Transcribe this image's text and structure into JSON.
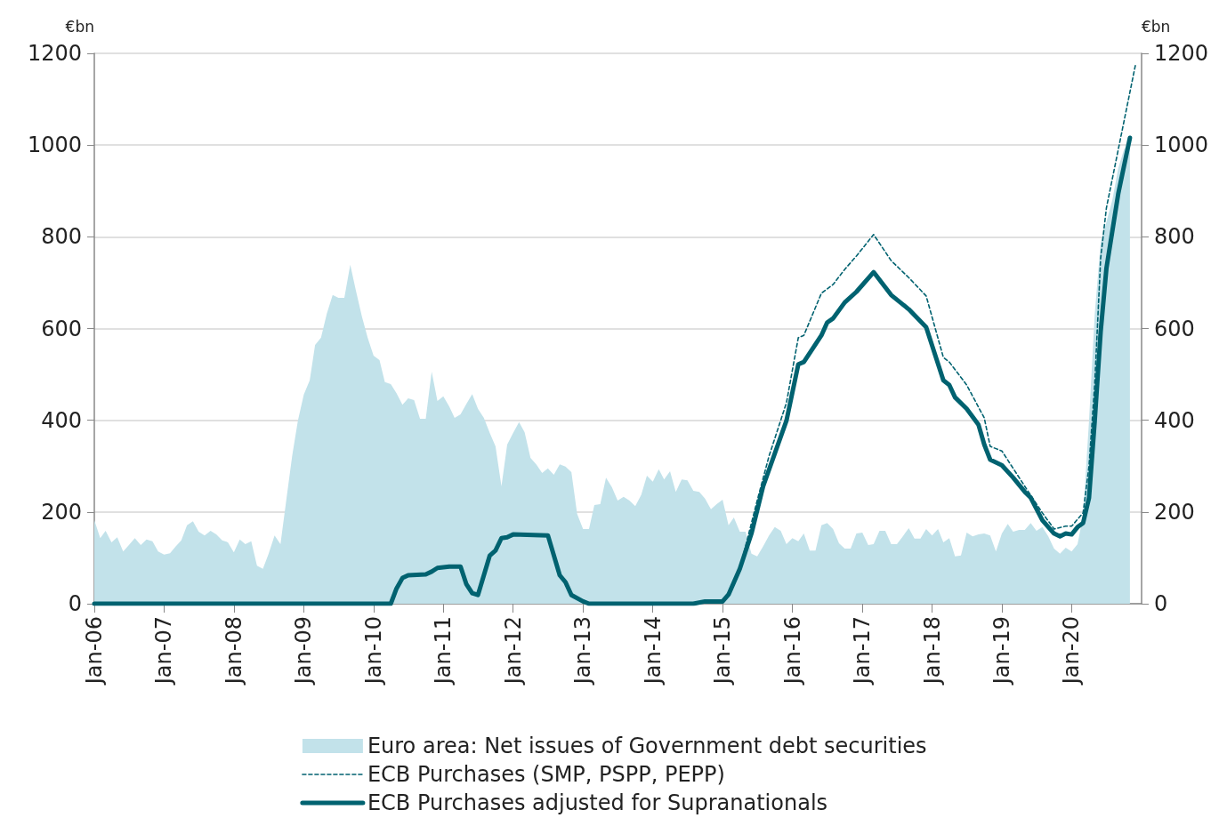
{
  "chart_data": {
    "type": "line",
    "ylabel": "€bn",
    "y2label": "€bn",
    "xlim": [
      "2006-01",
      "2021-01"
    ],
    "xticks": [
      {
        "value": "2006-01",
        "label": "Jan-06"
      },
      {
        "value": "2007-01",
        "label": "Jan-07"
      },
      {
        "value": "2008-01",
        "label": "Jan-08"
      },
      {
        "value": "2009-01",
        "label": "Jan-09"
      },
      {
        "value": "2010-01",
        "label": "Jan-10"
      },
      {
        "value": "2011-01",
        "label": "Jan-11"
      },
      {
        "value": "2012-01",
        "label": "Jan-12"
      },
      {
        "value": "2013-01",
        "label": "Jan-13"
      },
      {
        "value": "2014-01",
        "label": "Jan-14"
      },
      {
        "value": "2015-01",
        "label": "Jan-15"
      },
      {
        "value": "2016-01",
        "label": "Jan-16"
      },
      {
        "value": "2017-01",
        "label": "Jan-17"
      },
      {
        "value": "2018-01",
        "label": "Jan-18"
      },
      {
        "value": "2019-01",
        "label": "Jan-19"
      },
      {
        "value": "2020-01",
        "label": "Jan-20"
      }
    ],
    "ylim": [
      0,
      1200
    ],
    "yticks": [
      0,
      200,
      400,
      600,
      800,
      1000,
      1200
    ],
    "y2lim": [
      0,
      1200
    ],
    "y2ticks": [
      0,
      200,
      400,
      600,
      800,
      1000,
      1200
    ],
    "grid": "y",
    "legend": "bottom",
    "marker": "none",
    "x": [
      "2006-01",
      "2006-02",
      "2006-03",
      "2006-04",
      "2006-05",
      "2006-06",
      "2006-07",
      "2006-08",
      "2006-09",
      "2006-10",
      "2006-11",
      "2006-12",
      "2007-01",
      "2007-02",
      "2007-03",
      "2007-04",
      "2007-05",
      "2007-06",
      "2007-07",
      "2007-08",
      "2007-09",
      "2007-10",
      "2007-11",
      "2007-12",
      "2008-01",
      "2008-02",
      "2008-03",
      "2008-04",
      "2008-05",
      "2008-06",
      "2008-07",
      "2008-08",
      "2008-09",
      "2008-10",
      "2008-11",
      "2008-12",
      "2009-01",
      "2009-02",
      "2009-03",
      "2009-04",
      "2009-05",
      "2009-06",
      "2009-07",
      "2009-08",
      "2009-09",
      "2009-10",
      "2009-11",
      "2009-12",
      "2010-01",
      "2010-02",
      "2010-03",
      "2010-04",
      "2010-05",
      "2010-06",
      "2010-07",
      "2010-08",
      "2010-09",
      "2010-10",
      "2010-11",
      "2010-12",
      "2011-01",
      "2011-02",
      "2011-03",
      "2011-04",
      "2011-05",
      "2011-06",
      "2011-07",
      "2011-08",
      "2011-09",
      "2011-10",
      "2011-11",
      "2011-12",
      "2012-01",
      "2012-02",
      "2012-03",
      "2012-04",
      "2012-05",
      "2012-06",
      "2012-07",
      "2012-08",
      "2012-09",
      "2012-10",
      "2012-11",
      "2012-12",
      "2013-01",
      "2013-02",
      "2013-03",
      "2013-04",
      "2013-05",
      "2013-06",
      "2013-07",
      "2013-08",
      "2013-09",
      "2013-10",
      "2013-11",
      "2013-12",
      "2014-01",
      "2014-02",
      "2014-03",
      "2014-04",
      "2014-05",
      "2014-06",
      "2014-07",
      "2014-08",
      "2014-09",
      "2014-10",
      "2014-11",
      "2014-12",
      "2015-01",
      "2015-02",
      "2015-03",
      "2015-04",
      "2015-05",
      "2015-06",
      "2015-07",
      "2015-08",
      "2015-09",
      "2015-10",
      "2015-11",
      "2015-12",
      "2016-01",
      "2016-02",
      "2016-03",
      "2016-04",
      "2016-05",
      "2016-06",
      "2016-07",
      "2016-08",
      "2016-09",
      "2016-10",
      "2016-11",
      "2016-12",
      "2017-01",
      "2017-02",
      "2017-03",
      "2017-04",
      "2017-05",
      "2017-06",
      "2017-07",
      "2017-08",
      "2017-09",
      "2017-10",
      "2017-11",
      "2017-12",
      "2018-01",
      "2018-02",
      "2018-03",
      "2018-04",
      "2018-05",
      "2018-06",
      "2018-07",
      "2018-08",
      "2018-09",
      "2018-10",
      "2018-11",
      "2018-12",
      "2019-01",
      "2019-02",
      "2019-03",
      "2019-04",
      "2019-05",
      "2019-06",
      "2019-07",
      "2019-08",
      "2019-09",
      "2019-10",
      "2019-11",
      "2019-12",
      "2020-01",
      "2020-02",
      "2020-03",
      "2020-04",
      "2020-05",
      "2020-06",
      "2020-07",
      "2020-08",
      "2020-09",
      "2020-10",
      "2020-11"
    ],
    "series": [
      {
        "name": "Euro area: Net issues of Government debt securities",
        "type": "area",
        "color": "#c2e2ea",
        "values": [
          182,
          143,
          159,
          134,
          145,
          114,
          128,
          143,
          128,
          140,
          136,
          114,
          107,
          110,
          124,
          138,
          171,
          180,
          157,
          149,
          159,
          151,
          138,
          134,
          112,
          140,
          130,
          136,
          83,
          76,
          109,
          149,
          130,
          225,
          322,
          399,
          456,
          487,
          564,
          580,
          632,
          673,
          667,
          667,
          739,
          682,
          626,
          580,
          541,
          531,
          483,
          479,
          459,
          434,
          448,
          444,
          403,
          403,
          506,
          442,
          452,
          430,
          405,
          413,
          435,
          457,
          425,
          405,
          372,
          343,
          256,
          347,
          372,
          396,
          374,
          318,
          304,
          285,
          295,
          281,
          304,
          299,
          287,
          196,
          163,
          163,
          215,
          217,
          275,
          254,
          225,
          233,
          225,
          213,
          237,
          279,
          266,
          293,
          271,
          289,
          244,
          271,
          269,
          246,
          244,
          229,
          206,
          217,
          227,
          171,
          188,
          157,
          157,
          109,
          103,
          125,
          149,
          167,
          159,
          130,
          143,
          136,
          153,
          116,
          116,
          171,
          176,
          163,
          132,
          120,
          120,
          153,
          155,
          128,
          130,
          159,
          159,
          130,
          130,
          147,
          165,
          142,
          142,
          163,
          149,
          163,
          134,
          143,
          103,
          105,
          155,
          147,
          151,
          153,
          149,
          114,
          153,
          174,
          157,
          161,
          161,
          176,
          159,
          167,
          147,
          120,
          109,
          122,
          114,
          130,
          192,
          399,
          632,
          787,
          832,
          880,
          950,
          990,
          1010
        ]
      },
      {
        "name": "ECB Purchases (SMP, PSPP, PEPP)",
        "line_style": "dashed",
        "color": "#006270",
        "x": [
          "2006-01",
          "2010-04",
          "2010-05",
          "2010-06",
          "2010-07",
          "2010-10",
          "2010-11",
          "2010-12",
          "2011-02",
          "2011-04",
          "2011-05",
          "2011-06",
          "2011-07",
          "2011-09",
          "2011-10",
          "2011-11",
          "2011-12",
          "2012-01",
          "2012-07",
          "2012-09",
          "2012-10",
          "2012-11",
          "2013-01",
          "2013-02",
          "2014-08",
          "2014-10",
          "2015-01",
          "2015-02",
          "2015-04",
          "2015-07",
          "2015-09",
          "2015-12",
          "2016-02",
          "2016-03",
          "2016-06",
          "2016-08",
          "2016-10",
          "2016-12",
          "2017-03",
          "2017-06",
          "2017-09",
          "2017-12",
          "2018-03",
          "2018-04",
          "2018-07",
          "2018-10",
          "2018-11",
          "2019-01",
          "2019-05",
          "2019-08",
          "2019-10",
          "2019-12",
          "2020-01",
          "2020-03",
          "2020-04",
          "2020-05",
          "2020-06",
          "2020-07",
          "2020-12"
        ],
        "values": [
          0,
          0,
          33,
          56,
          62,
          64,
          70,
          78,
          81,
          81,
          43,
          23,
          19,
          105,
          116,
          143,
          145,
          151,
          149,
          62,
          47,
          19,
          5,
          0,
          0,
          5,
          5,
          20,
          76,
          225,
          322,
          438,
          580,
          585,
          677,
          696,
          729,
          758,
          805,
          748,
          711,
          671,
          537,
          527,
          477,
          405,
          343,
          333,
          256,
          198,
          163,
          169,
          169,
          198,
          300,
          480,
          754,
          863,
          1177
        ]
      },
      {
        "name": "ECB Purchases adjusted for Supranationals",
        "line_style": "solid",
        "color": "#006270",
        "x": [
          "2006-01",
          "2010-04",
          "2010-05",
          "2010-06",
          "2010-07",
          "2010-10",
          "2010-11",
          "2010-12",
          "2011-02",
          "2011-04",
          "2011-05",
          "2011-06",
          "2011-07",
          "2011-09",
          "2011-10",
          "2011-11",
          "2011-12",
          "2012-01",
          "2012-07",
          "2012-09",
          "2012-10",
          "2012-11",
          "2013-01",
          "2013-02",
          "2014-08",
          "2014-10",
          "2015-01",
          "2015-02",
          "2015-04",
          "2015-06",
          "2015-08",
          "2015-12",
          "2016-02",
          "2016-03",
          "2016-06",
          "2016-07",
          "2016-08",
          "2016-10",
          "2016-12",
          "2017-03",
          "2017-06",
          "2017-09",
          "2017-12",
          "2018-03",
          "2018-04",
          "2018-05",
          "2018-07",
          "2018-09",
          "2018-10",
          "2018-11",
          "2019-01",
          "2019-03",
          "2019-05",
          "2019-06",
          "2019-08",
          "2019-10",
          "2019-11",
          "2019-12",
          "2020-01",
          "2020-02",
          "2020-03",
          "2020-04",
          "2020-05",
          "2020-06",
          "2020-07",
          "2020-09",
          "2020-11"
        ],
        "values": [
          0,
          0,
          33,
          56,
          62,
          64,
          70,
          78,
          81,
          81,
          43,
          23,
          19,
          105,
          116,
          143,
          145,
          151,
          149,
          62,
          47,
          19,
          5,
          0,
          0,
          5,
          5,
          20,
          76,
          153,
          256,
          399,
          522,
          527,
          585,
          613,
          622,
          657,
          680,
          723,
          673,
          642,
          603,
          487,
          477,
          450,
          425,
          390,
          347,
          314,
          302,
          275,
          244,
          231,
          182,
          153,
          147,
          153,
          151,
          167,
          176,
          231,
          399,
          593,
          731,
          894,
          1016
        ]
      }
    ]
  }
}
